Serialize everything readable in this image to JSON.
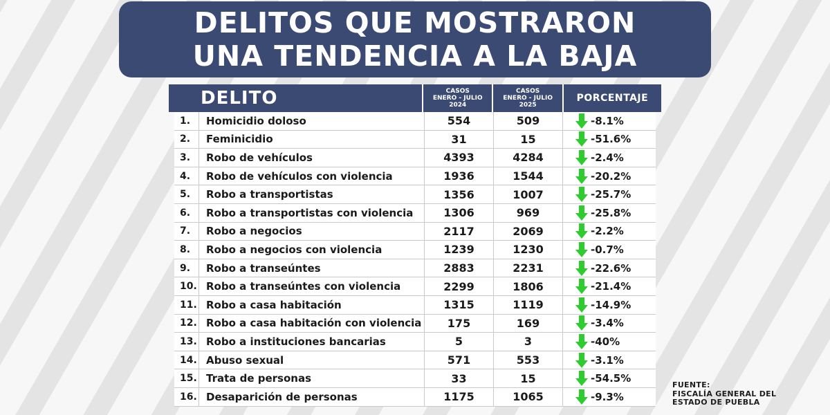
{
  "title": {
    "line1": "DELITOS QUE MOSTRARON",
    "line2": "UNA TENDENCIA A LA BAJA"
  },
  "table": {
    "headers": {
      "delito": "DELITO",
      "col2024_line1": "CASOS",
      "col2024_line2": "ENERO - JULIO",
      "col2024_line3": "2024",
      "col2025_line1": "CASOS",
      "col2025_line2": "ENERO - JULIO",
      "col2025_line3": "2025",
      "porcentaje": "PORCENTAJE"
    },
    "rows": [
      {
        "num": "1.",
        "name": "Homicidio doloso",
        "v2024": "554",
        "v2025": "509",
        "pct": "-8.1%"
      },
      {
        "num": "2.",
        "name": "Feminicidio",
        "v2024": "31",
        "v2025": "15",
        "pct": "-51.6%"
      },
      {
        "num": "3.",
        "name": "Robo de vehículos",
        "v2024": "4393",
        "v2025": "4284",
        "pct": "-2.4%"
      },
      {
        "num": "4.",
        "name": "Robo de vehículos con violencia",
        "v2024": "1936",
        "v2025": "1544",
        "pct": "-20.2%"
      },
      {
        "num": "5.",
        "name": "Robo a transportistas",
        "v2024": "1356",
        "v2025": "1007",
        "pct": "-25.7%"
      },
      {
        "num": "6.",
        "name": "Robo a transportistas con violencia",
        "v2024": "1306",
        "v2025": "969",
        "pct": "-25.8%"
      },
      {
        "num": "7.",
        "name": "Robo a negocios",
        "v2024": "2117",
        "v2025": "2069",
        "pct": "-2.2%"
      },
      {
        "num": "8.",
        "name": "Robo a negocios con violencia",
        "v2024": "1239",
        "v2025": "1230",
        "pct": "-0.7%"
      },
      {
        "num": "9.",
        "name": "Robo a transeúntes",
        "v2024": "2883",
        "v2025": "2231",
        "pct": "-22.6%"
      },
      {
        "num": "10.",
        "name": "Robo a transeúntes con violencia",
        "v2024": "2299",
        "v2025": "1806",
        "pct": "-21.4%"
      },
      {
        "num": "11.",
        "name": "Robo a casa habitación",
        "v2024": "1315",
        "v2025": "1119",
        "pct": "-14.9%"
      },
      {
        "num": "12.",
        "name": "Robo a casa habitación con violencia",
        "v2024": "175",
        "v2025": "169",
        "pct": "-3.4%"
      },
      {
        "num": "13.",
        "name": "Robo a instituciones bancarias",
        "v2024": "5",
        "v2025": "3",
        "pct": "-40%"
      },
      {
        "num": "14.",
        "name": "Abuso sexual",
        "v2024": "571",
        "v2025": "553",
        "pct": "-3.1%"
      },
      {
        "num": "15.",
        "name": "Trata de personas",
        "v2024": "33",
        "v2025": "15",
        "pct": "-54.5%"
      },
      {
        "num": "16.",
        "name": "Desaparición de personas",
        "v2024": "1175",
        "v2025": "1065",
        "pct": "-9.3%"
      }
    ]
  },
  "source": {
    "line1": "FUENTE:",
    "line2": "FISCALÍA GENERAL DEL",
    "line3": "ESTADO DE PUEBLA"
  },
  "colors": {
    "header_bg": "#3a4a72",
    "arrow_green": "#2ecc2e"
  },
  "icons": {
    "trend": "down-arrow-icon"
  }
}
